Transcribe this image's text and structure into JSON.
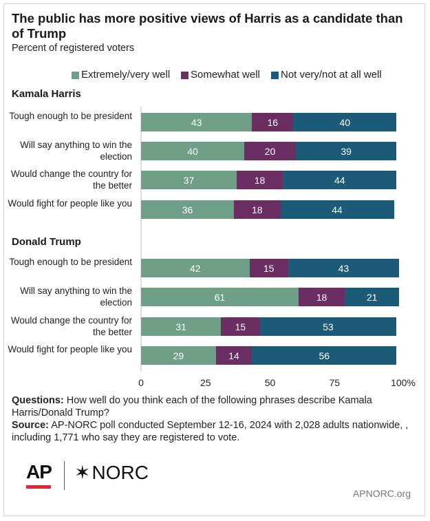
{
  "title": "The public has more positive views of Harris as a candidate than of Trump",
  "subtitle": "Percent of registered voters",
  "colors": {
    "extremely": "#6f9f86",
    "somewhat": "#6a2e63",
    "not": "#1b5b77"
  },
  "chart_data": {
    "type": "bar",
    "orientation": "horizontal",
    "stacked": true,
    "xlim": [
      0,
      100
    ],
    "x_ticks": [
      "0",
      "25",
      "50",
      "75",
      "100%"
    ],
    "legend": {
      "placement": "top",
      "entries": [
        "Extremely/very well",
        "Somewhat well",
        "Not very/not at all well"
      ]
    },
    "groups": [
      {
        "name": "Kamala Harris",
        "categories": [
          "Tough enough to be president",
          "Will say anything to win the election",
          "Would change the country for the better",
          "Would fight for people like you"
        ],
        "series": [
          {
            "name": "Extremely/very well",
            "values": [
              43,
              40,
              37,
              36
            ]
          },
          {
            "name": "Somewhat well",
            "values": [
              16,
              20,
              18,
              18
            ]
          },
          {
            "name": "Not very/not at all well",
            "values": [
              40,
              39,
              44,
              44
            ]
          }
        ]
      },
      {
        "name": "Donald Trump",
        "categories": [
          "Tough enough to be president",
          "Will say anything to win the election",
          "Would change the country for the better",
          "Would fight for people like you"
        ],
        "series": [
          {
            "name": "Extremely/very well",
            "values": [
              42,
              61,
              31,
              29
            ]
          },
          {
            "name": "Somewhat well",
            "values": [
              15,
              18,
              15,
              14
            ]
          },
          {
            "name": "Not very/not at all well",
            "values": [
              43,
              21,
              53,
              56
            ]
          }
        ]
      }
    ]
  },
  "notes": {
    "questions_label": "Questions:",
    "questions_text": " How well do you think each of the following phrases describe Kamala Harris/Donald Trump?",
    "source_label": "Source:",
    "source_text": " AP-NORC poll conducted September 12-16, 2024 with 2,028 adults nationwide, , including 1,771 who say they are registered to vote."
  },
  "logos": {
    "ap": "AP",
    "norc": "NORC"
  },
  "footer_url": "APNORC.org"
}
